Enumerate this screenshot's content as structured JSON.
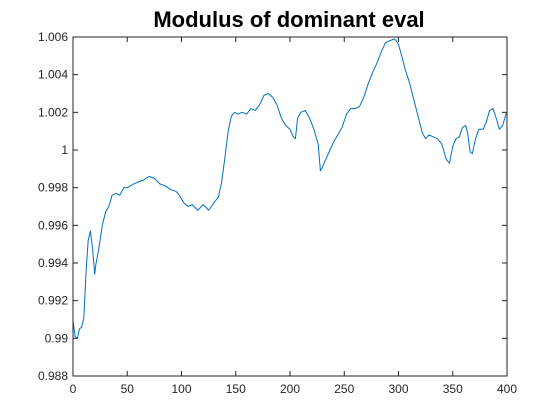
{
  "chart_data": {
    "type": "line",
    "title": "Modulus of dominant eval",
    "xlabel": "",
    "ylabel": "",
    "xlim": [
      0,
      400
    ],
    "ylim": [
      0.988,
      1.006
    ],
    "xticks": [
      0,
      50,
      100,
      150,
      200,
      250,
      300,
      350,
      400
    ],
    "xtick_labels": [
      "0",
      "50",
      "100",
      "150",
      "200",
      "250",
      "300",
      "350",
      "400"
    ],
    "yticks": [
      0.988,
      0.99,
      0.992,
      0.994,
      0.996,
      0.998,
      1.0,
      1.002,
      1.004,
      1.006
    ],
    "ytick_labels": [
      "0.988",
      "0.99",
      "0.992",
      "0.994",
      "0.996",
      "0.998",
      "1",
      "1.002",
      "1.004",
      "1.006"
    ],
    "grid": false,
    "series": [
      {
        "color": "#0072BD",
        "x": [
          0,
          2,
          4,
          6,
          8,
          10,
          12,
          14,
          16,
          18,
          20,
          21,
          23,
          25,
          27,
          30,
          33,
          36,
          40,
          43,
          47,
          50,
          53,
          56,
          60,
          65,
          70,
          75,
          80,
          85,
          90,
          95,
          98,
          102,
          106,
          110,
          115,
          120,
          125,
          130,
          134,
          137,
          140,
          143,
          146,
          149,
          152,
          156,
          160,
          164,
          168,
          172,
          176,
          180,
          184,
          188,
          192,
          196,
          200,
          203,
          205,
          207,
          210,
          214,
          218,
          222,
          226,
          228,
          230,
          233,
          236,
          240,
          244,
          248,
          252,
          256,
          260,
          264,
          268,
          272,
          276,
          280,
          284,
          288,
          292,
          296,
          298,
          300,
          303,
          306,
          310,
          314,
          318,
          322,
          325,
          328,
          332,
          336,
          340,
          344,
          347,
          350,
          353,
          356,
          359,
          362,
          364,
          366,
          368,
          371,
          374,
          378,
          381,
          384,
          387,
          390,
          393,
          396,
          399,
          400
        ],
        "y": [
          0.9909,
          0.9901,
          0.99,
          0.9905,
          0.9906,
          0.9911,
          0.9935,
          0.9952,
          0.9957,
          0.9948,
          0.9934,
          0.9939,
          0.9945,
          0.9952,
          0.996,
          0.9967,
          0.997,
          0.9976,
          0.9977,
          0.9976,
          0.998,
          0.998,
          0.9981,
          0.9982,
          0.9983,
          0.9984,
          0.9986,
          0.9985,
          0.9982,
          0.9981,
          0.9979,
          0.9978,
          0.9976,
          0.9972,
          0.997,
          0.9971,
          0.9968,
          0.9971,
          0.9968,
          0.9972,
          0.9975,
          0.9983,
          0.9996,
          1.001,
          1.0018,
          1.002,
          1.0019,
          1.002,
          1.0019,
          1.0022,
          1.0021,
          1.0024,
          1.0029,
          1.003,
          1.0028,
          1.0024,
          1.0017,
          1.0013,
          1.0011,
          1.0007,
          1.0006,
          1.0017,
          1.002,
          1.0021,
          1.0017,
          1.0011,
          1.0003,
          0.9989,
          0.9991,
          0.9995,
          0.9999,
          1.0004,
          1.0008,
          1.0012,
          1.0019,
          1.0022,
          1.0022,
          1.0023,
          1.0028,
          1.0035,
          1.0041,
          1.0046,
          1.0052,
          1.0057,
          1.0058,
          1.0059,
          1.0058,
          1.0056,
          1.005,
          1.0043,
          1.0036,
          1.0027,
          1.0018,
          1.0009,
          1.0006,
          1.0008,
          1.0007,
          1.0006,
          1.0003,
          0.9995,
          0.9993,
          1.0002,
          1.0006,
          1.0007,
          1.0012,
          1.0013,
          1.0008,
          0.9999,
          0.9998,
          1.0006,
          1.0011,
          1.0011,
          1.0015,
          1.0021,
          1.0022,
          1.0017,
          1.0011,
          1.0013,
          1.0019,
          1.002
        ]
      }
    ]
  }
}
